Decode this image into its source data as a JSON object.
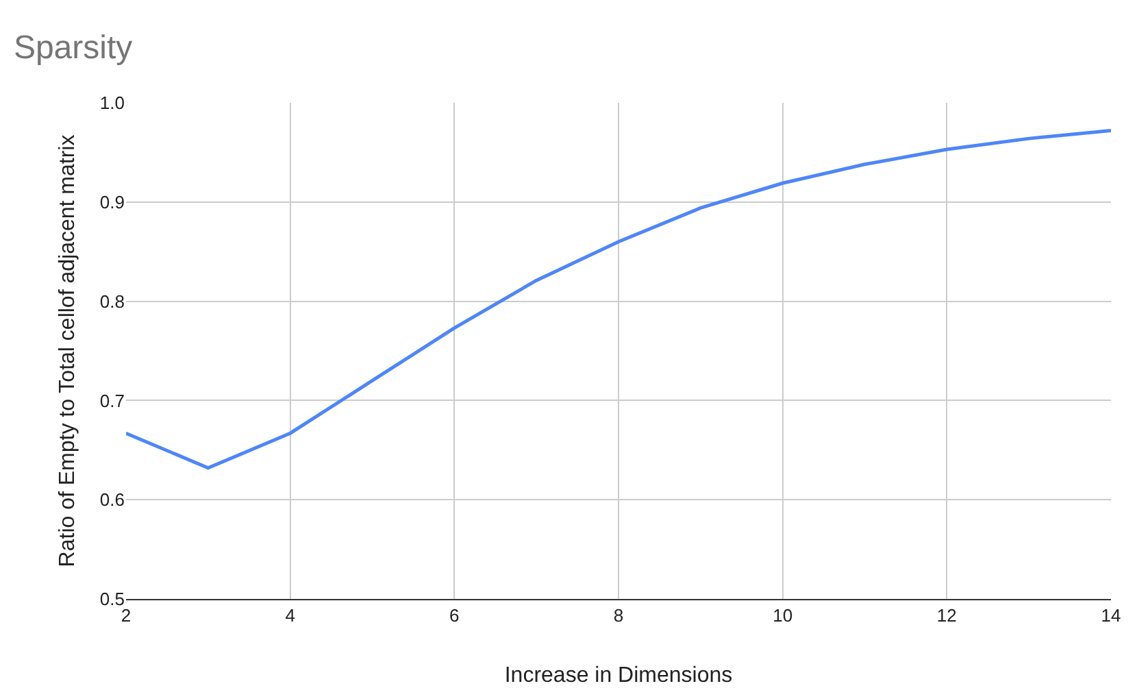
{
  "chart_data": {
    "type": "line",
    "title": "Sparsity",
    "xlabel": "Increase in Dimensions",
    "ylabel": "Ratio of Empty to Total cellof adjacent matrix",
    "x": [
      2,
      3,
      4,
      5,
      6,
      7,
      8,
      9,
      10,
      11,
      12,
      13,
      14
    ],
    "series": [
      {
        "color": "#4f86f7",
        "values": [
          0.667,
          0.632,
          0.667,
          0.72,
          0.773,
          0.821,
          0.86,
          0.894,
          0.919,
          0.938,
          0.953,
          0.964,
          0.972
        ]
      }
    ],
    "xlim": [
      2,
      14
    ],
    "xticks": [
      2,
      4,
      6,
      8,
      10,
      12,
      14
    ],
    "ylim": [
      0.5,
      1.0
    ],
    "yticks": [
      {
        "value": 0.5,
        "label": "0.5"
      },
      {
        "value": 0.6,
        "label": "0.6"
      },
      {
        "value": 0.7,
        "label": "0.7"
      },
      {
        "value": 0.8,
        "label": "0.8"
      },
      {
        "value": 0.9,
        "label": "0.9"
      },
      {
        "value": 1.0,
        "label": "1.0"
      }
    ],
    "grid": true,
    "marker": "none",
    "line_style": "solid"
  }
}
